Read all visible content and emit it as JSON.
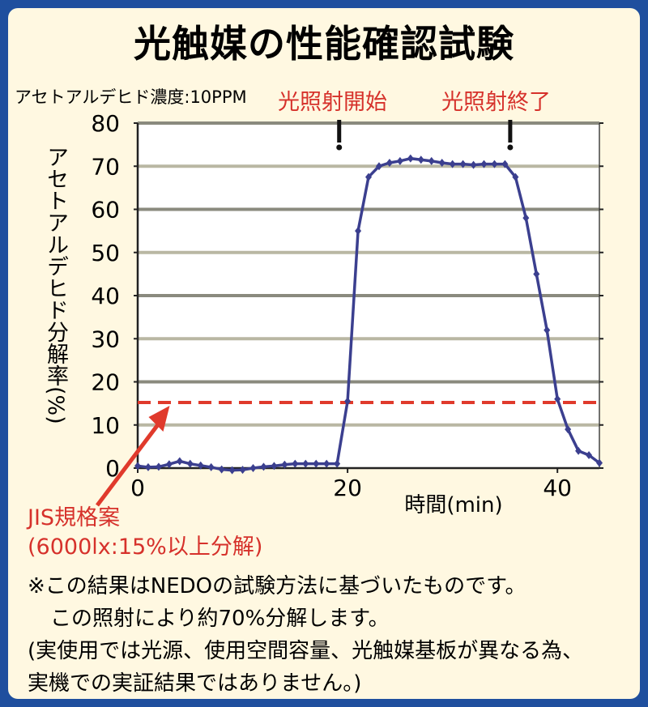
{
  "header": {
    "title": "光触媒の性能確認試験",
    "concentration": "アセトアルデヒド濃度:10PPM",
    "event_start": "光照射開始",
    "event_end": "光照射終了"
  },
  "annotation": {
    "jis_line1": "JIS規格案",
    "jis_line2": "(6000lx:15%以上分解)"
  },
  "notes": {
    "line1": "※この結果はNEDOの試験方法に基づいたものです。",
    "line2": "この照射により約70%分解します。",
    "line3": "(実使用では光源、使用空間容量、光触媒基板が異なる為、",
    "line4": "実機での実証結果ではありません。)"
  },
  "colors": {
    "background": "#1f4f9e",
    "panel": "#fff8e1",
    "series": "#3b3f8f",
    "threshold": "#e03a2c",
    "accent_text": "#d6312b"
  },
  "chart_data": {
    "type": "line",
    "ylabel": "アセトアルデヒド分解率(%)",
    "xlabel": "時間(min)",
    "xlim": [
      0,
      44
    ],
    "ylim": [
      0,
      80
    ],
    "x_ticks": [
      "0",
      "20",
      "40"
    ],
    "x_tick_values": [
      0,
      20,
      40
    ],
    "y_ticks": [
      "0",
      "10",
      "20",
      "30",
      "40",
      "50",
      "60",
      "70",
      "80"
    ],
    "y_tick_values": [
      0,
      10,
      20,
      30,
      40,
      50,
      60,
      70,
      80
    ],
    "grid": true,
    "threshold": {
      "y": 15.2,
      "style": "dashed"
    },
    "events": [
      {
        "x": 19.2
      },
      {
        "x": 35.5
      }
    ],
    "series": [
      {
        "x": [
          0,
          1,
          2,
          3,
          4,
          5,
          6,
          7,
          8,
          9,
          10,
          11,
          12,
          13,
          14,
          15,
          16,
          17,
          18,
          19,
          20,
          21,
          22,
          23,
          24,
          25,
          26,
          27,
          28,
          29,
          30,
          31,
          32,
          33,
          34,
          35,
          36,
          37,
          38,
          39,
          40,
          41,
          42,
          43,
          44
        ],
        "y": [
          0.5,
          0.2,
          0.3,
          0.9,
          1.6,
          1.0,
          0.6,
          0.2,
          -0.3,
          -0.5,
          -0.4,
          0.0,
          0.3,
          0.5,
          0.8,
          1.0,
          1.0,
          1.0,
          1.0,
          1.0,
          15.5,
          55,
          67.5,
          70,
          70.8,
          71.2,
          71.8,
          71.5,
          71.2,
          70.8,
          70.5,
          70.5,
          70.3,
          70.5,
          70.5,
          70.5,
          67.5,
          58,
          45,
          32,
          16,
          9,
          4,
          3,
          1.2
        ]
      }
    ]
  }
}
